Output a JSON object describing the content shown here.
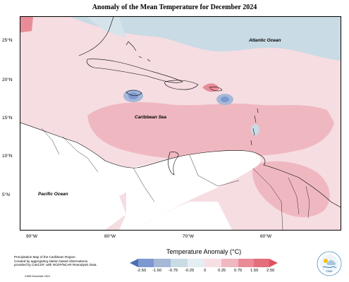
{
  "title": "Anomaly of the Mean Temperature for December 2024",
  "lat_labels": [
    "25°N",
    "20°N",
    "15°N",
    "10°N",
    "5°N"
  ],
  "lon_labels": [
    "90°W",
    "80°W",
    "70°W",
    "60°W"
  ],
  "labels": {
    "atlantic": "Atlantic Ocean",
    "caribbean": "Caribbean Sea",
    "pacific": "Pacific Ocean"
  },
  "credits": [
    "Precipitation Map of the Caribbean Region.",
    "Created by aggregating station based observations,",
    "provided by CariCOF, with NCEP/NCAR Reanalysis Data."
  ],
  "stamp": "CIMH December 2024",
  "legend": {
    "title": "Temperature Anomaly (°C)",
    "ticks": [
      "-2.50",
      "-1.50",
      "-0.75",
      "-0.25",
      "0",
      "0.25",
      "0.75",
      "1.50",
      "2.50"
    ],
    "colors": {
      "neg_2_50": "#4c6fb2",
      "neg_1_50": "#7d98d0",
      "neg_0_75": "#a6b8d8",
      "neg_0_25": "#c9dbe4",
      "zero": "#ffffff",
      "pos_0_25": "#f8dfe4",
      "pos_0_75": "#efb8c0",
      "pos_1_50": "#e98c98",
      "pos_2_50": "#e05060"
    }
  },
  "logo_text": "CIMH"
}
